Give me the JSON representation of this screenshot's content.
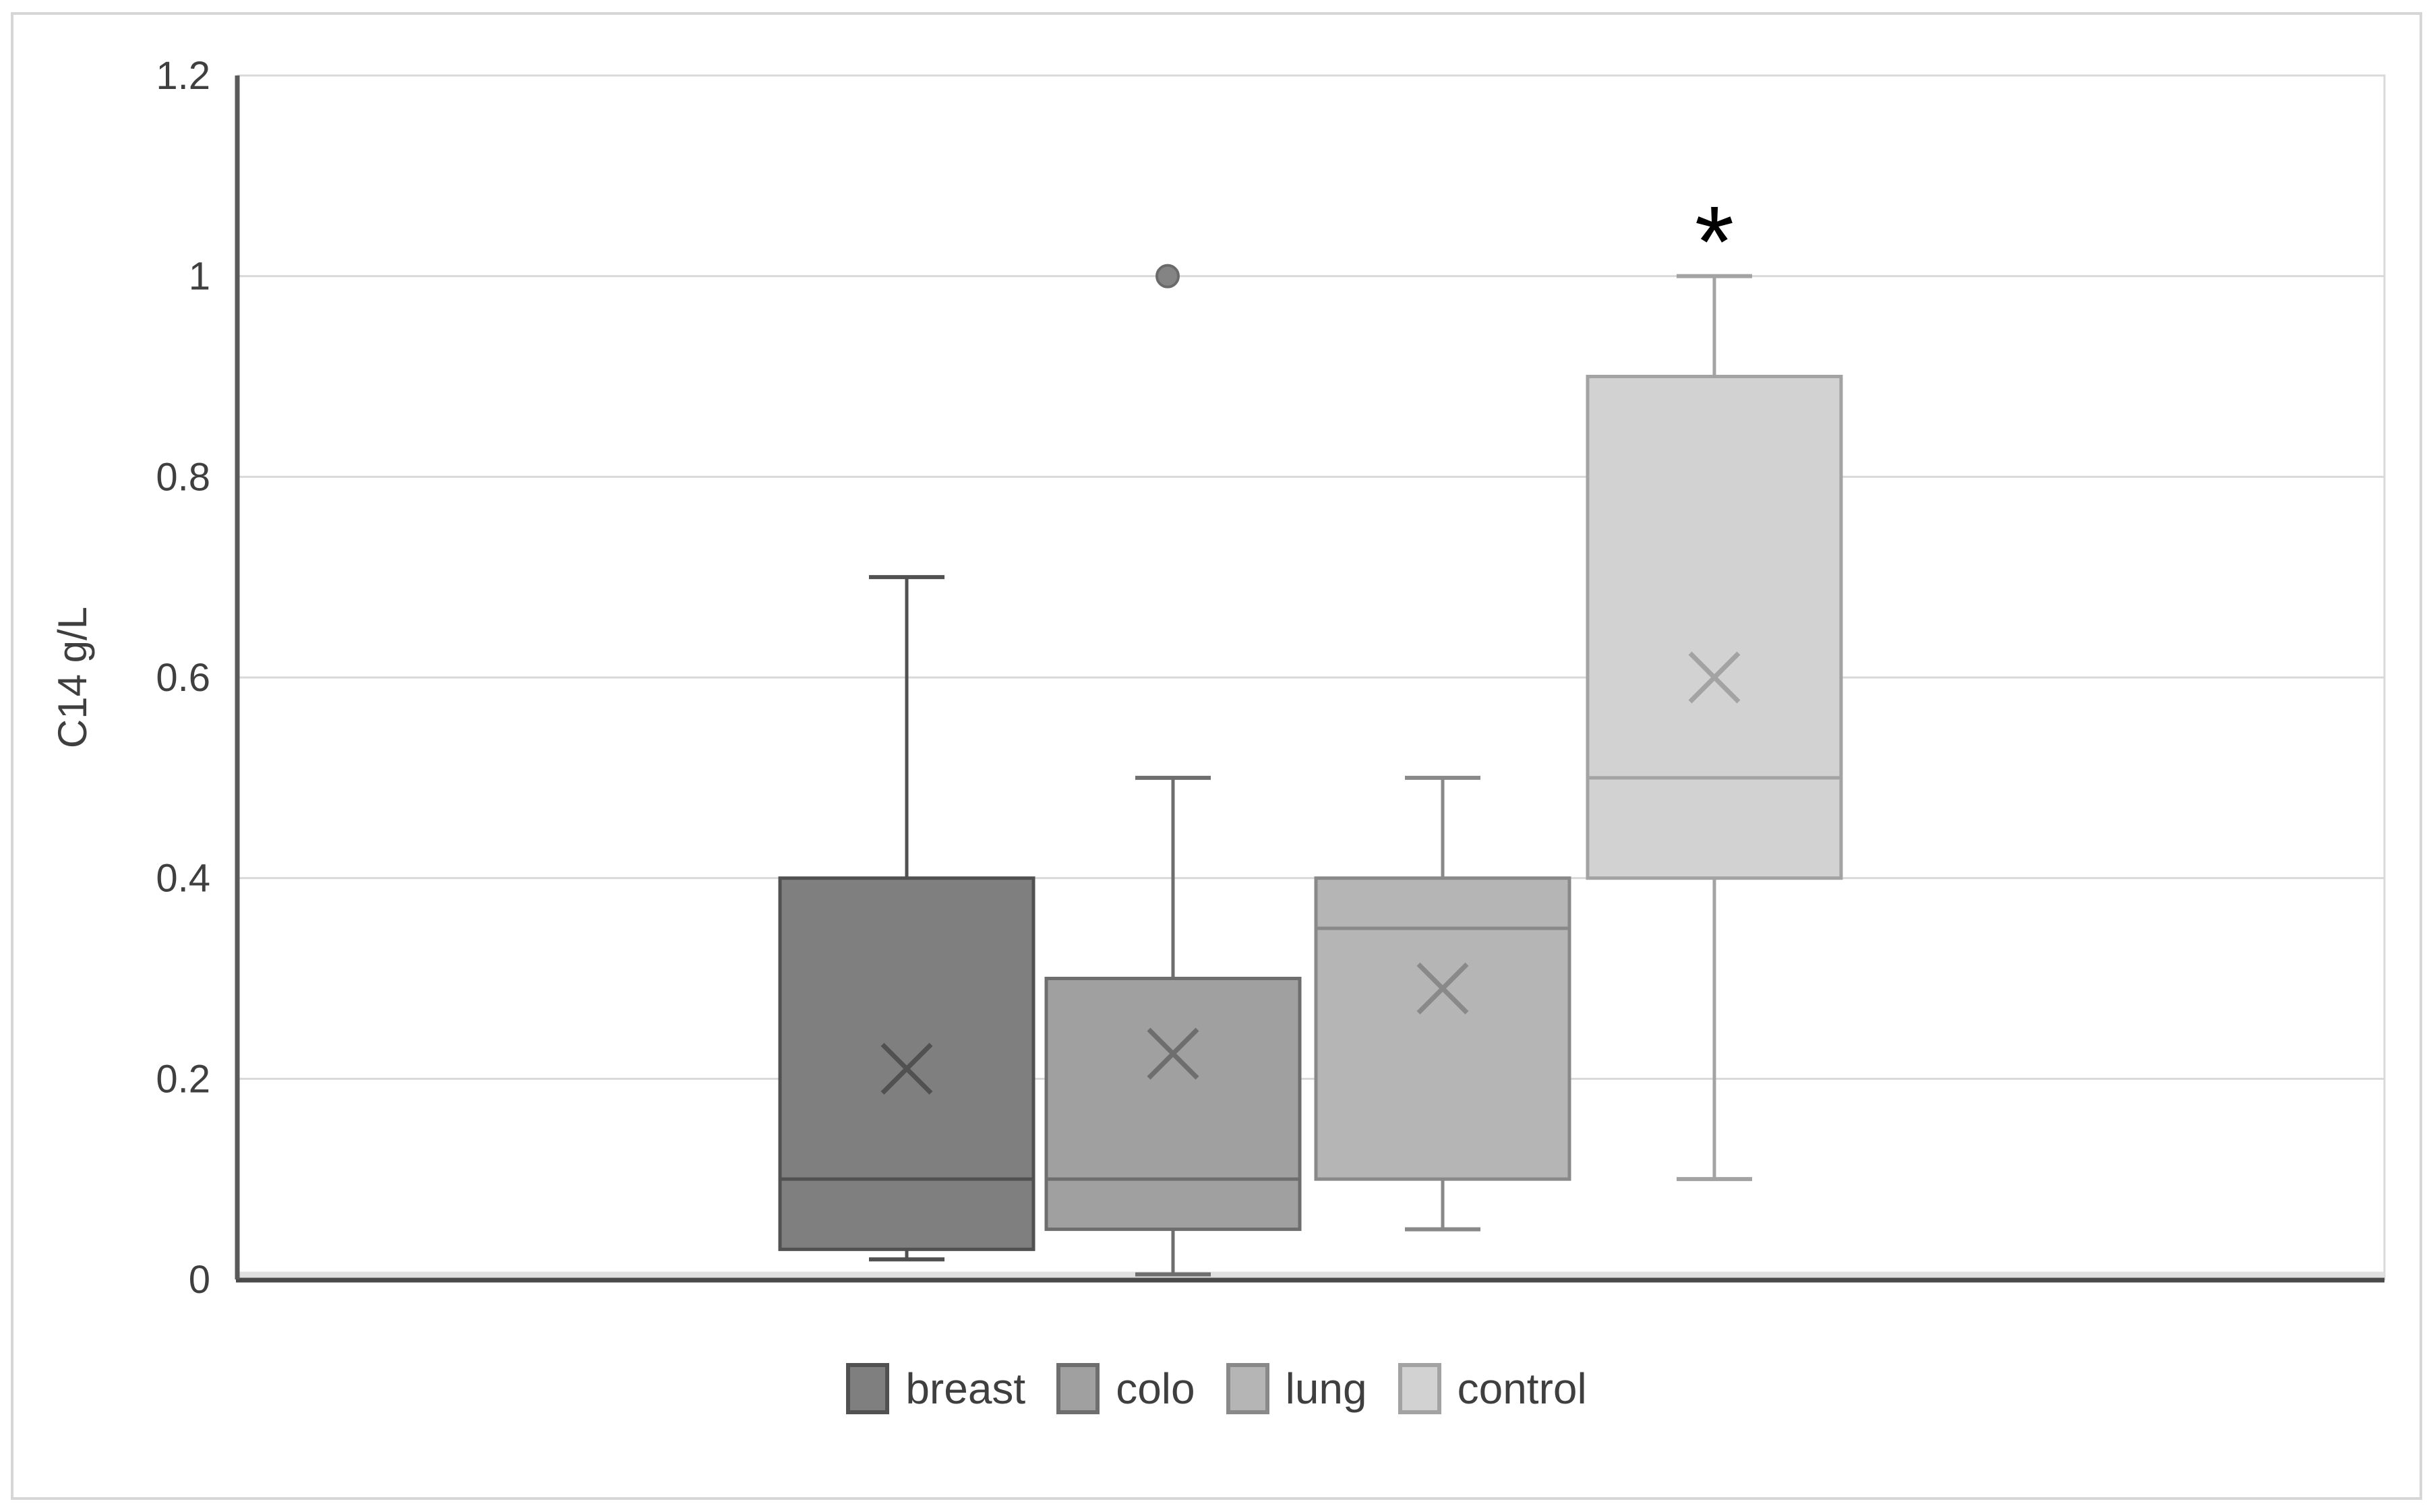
{
  "figure": {
    "background": "#ffffff",
    "border_color": "#d6d6d6"
  },
  "chart_data": {
    "type": "boxplot",
    "title": "",
    "ylabel": "C14 g/L",
    "xlabel": "",
    "ylim": [
      0,
      1.2
    ],
    "ytick_step": 0.2,
    "ytick_labels": [
      "0",
      "0.2",
      "0.4",
      "0.6",
      "0.8",
      "1",
      "1.2"
    ],
    "grid": true,
    "gridline_color": "#d9d9d9",
    "axis_line_color": "#4a4a4a",
    "plot_border_color": "#d9d9d9",
    "text_color": "#3f3f3f",
    "legend_position": "bottom",
    "series": [
      {
        "name": "breast",
        "min": 0.02,
        "q1": 0.03,
        "median": 0.1,
        "q3": 0.4,
        "max": 0.7,
        "mean": 0.21,
        "outliers": [],
        "fill": "#7f7f7f",
        "stroke": "#515151"
      },
      {
        "name": "colo",
        "min": 0.005,
        "q1": 0.05,
        "median": 0.1,
        "q3": 0.3,
        "max": 0.5,
        "mean": 0.225,
        "outliers": [
          1.0
        ],
        "fill": "#a0a0a0",
        "stroke": "#6e6e6e"
      },
      {
        "name": "lung",
        "min": 0.05,
        "q1": 0.1,
        "median": 0.35,
        "q3": 0.4,
        "max": 0.5,
        "mean": 0.29,
        "outliers": [],
        "fill": "#b5b5b5",
        "stroke": "#898989"
      },
      {
        "name": "control",
        "min": 0.1,
        "q1": 0.4,
        "median": 0.5,
        "q3": 0.9,
        "max": 1.0,
        "mean": 0.6,
        "outliers": [],
        "fill": "#d2d2d2",
        "stroke": "#a3a3a3"
      }
    ],
    "annotations": [
      {
        "text": "*",
        "series": "control",
        "y": 1.05,
        "color": "#000000"
      }
    ],
    "outlier_style": {
      "fill": "#848484",
      "stroke": "#6b6b6b"
    }
  }
}
